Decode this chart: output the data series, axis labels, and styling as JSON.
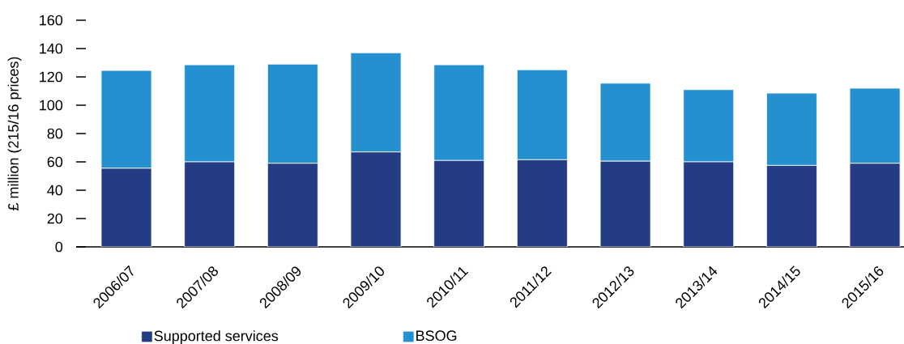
{
  "chart_data": {
    "type": "bar",
    "stacked": true,
    "ylabel": "£ million (215/16 prices)",
    "categories": [
      "2006/07",
      "2007/08",
      "2008/09",
      "2009/10",
      "2010/11",
      "2011/12",
      "2012/13",
      "2013/14",
      "2014/15",
      "2015/16"
    ],
    "series": [
      {
        "name": "Supported services",
        "color": "#233c84",
        "values": [
          55.5,
          60,
          59,
          67,
          61,
          61.5,
          60.5,
          60,
          57.5,
          59
        ]
      },
      {
        "name": "BSOG",
        "color": "#2590d0",
        "values": [
          69,
          68.5,
          70,
          70,
          67.5,
          63.5,
          55,
          51,
          51,
          53
        ]
      }
    ],
    "ylim": [
      0,
      160
    ],
    "yticks": [
      0,
      20,
      40,
      60,
      80,
      100,
      120,
      140,
      160
    ],
    "legend": "bottom"
  }
}
